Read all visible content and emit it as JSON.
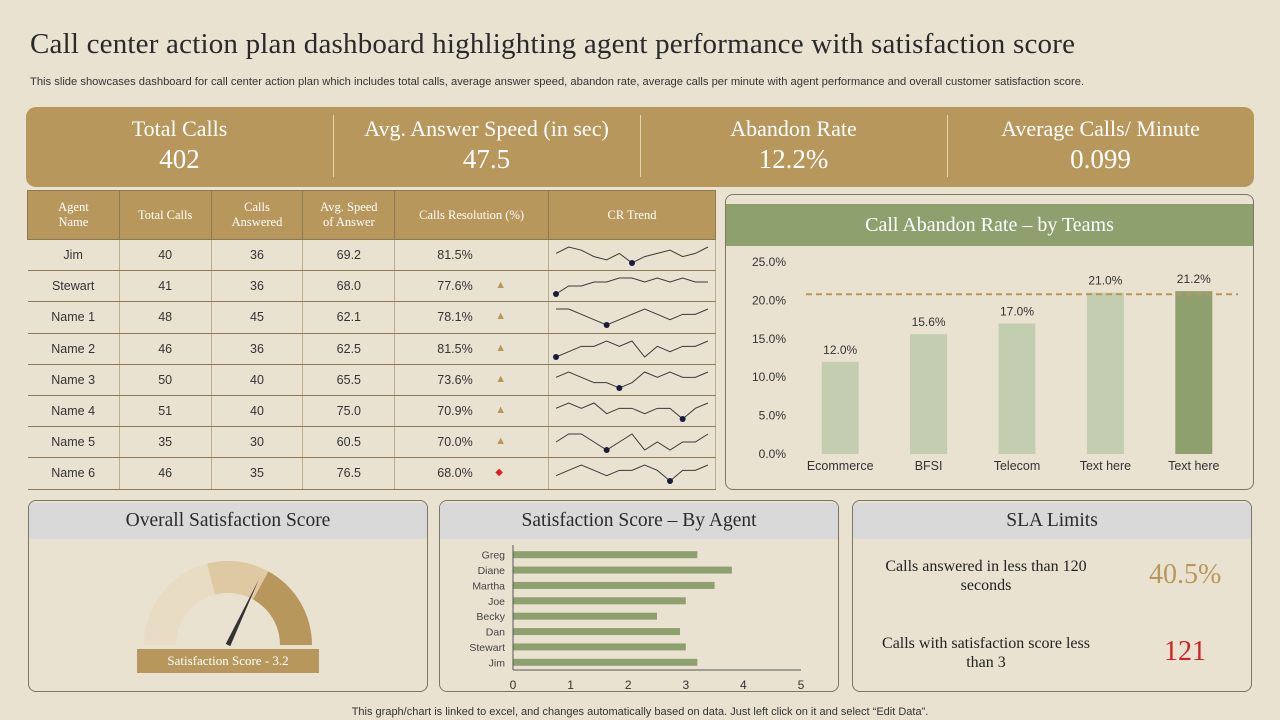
{
  "title": "Call center action plan dashboard highlighting agent performance with satisfaction score",
  "subtitle": "This slide showcases dashboard for call center action plan which includes total calls, average answer speed, abandon rate, average calls per minute with agent performance and overall customer satisfaction score.",
  "kpis": [
    {
      "label": "Total Calls",
      "value": "402"
    },
    {
      "label": "Avg. Answer Speed (in sec)",
      "value": "47.5"
    },
    {
      "label": "Abandon Rate",
      "value": "12.2%"
    },
    {
      "label": "Average Calls/ Minute",
      "value": "0.099"
    }
  ],
  "table": {
    "headers": {
      "agent_1": "Agent",
      "agent_2": "Name",
      "total": "Total Calls",
      "answered_1": "Calls",
      "answered_2": "Answered",
      "speed_1": "Avg. Speed",
      "speed_2": "of Answer",
      "resolution": "Calls Resolution  (%)",
      "trend": "CR Trend"
    },
    "rows": [
      {
        "name": "Jim",
        "total": "40",
        "answered": "36",
        "speed": "69.2",
        "resolution": "81.5%",
        "indicator": "none",
        "trend": [
          3,
          5,
          4,
          2,
          1,
          3,
          0,
          2,
          3,
          4,
          2,
          3,
          5
        ]
      },
      {
        "name": "Stewart",
        "total": "41",
        "answered": "36",
        "speed": "68.0",
        "resolution": "77.6%",
        "indicator": "up",
        "trend": [
          0,
          2,
          2,
          3,
          3,
          4,
          4,
          3,
          4,
          3,
          4,
          3,
          3
        ]
      },
      {
        "name": "Name 1",
        "total": "48",
        "answered": "45",
        "speed": "62.1",
        "resolution": "78.1%",
        "indicator": "up",
        "trend": [
          4,
          4,
          3,
          2,
          1,
          2,
          3,
          4,
          3,
          2,
          3,
          3,
          4
        ]
      },
      {
        "name": "Name 2",
        "total": "46",
        "answered": "36",
        "speed": "62.5",
        "resolution": "81.5%",
        "indicator": "up",
        "trend": [
          1,
          2,
          3,
          3,
          4,
          3,
          4,
          1,
          3,
          2,
          3,
          3,
          4
        ]
      },
      {
        "name": "Name 3",
        "total": "50",
        "answered": "40",
        "speed": "65.5",
        "resolution": "73.6%",
        "indicator": "up",
        "trend": [
          3,
          4,
          3,
          2,
          2,
          1,
          2,
          4,
          3,
          4,
          3,
          3,
          4
        ]
      },
      {
        "name": "Name 4",
        "total": "51",
        "answered": "40",
        "speed": "75.0",
        "resolution": "70.9%",
        "indicator": "up",
        "trend": [
          3,
          4,
          3,
          4,
          2,
          3,
          3,
          2,
          3,
          3,
          1,
          3,
          4
        ]
      },
      {
        "name": "Name 5",
        "total": "35",
        "answered": "30",
        "speed": "60.5",
        "resolution": "70.0%",
        "indicator": "up",
        "trend": [
          3,
          4,
          4,
          3,
          2,
          3,
          4,
          2,
          3,
          2,
          3,
          3,
          4
        ]
      },
      {
        "name": "Name 6",
        "total": "46",
        "answered": "35",
        "speed": "76.5",
        "resolution": "68.0%",
        "indicator": "down",
        "trend": [
          2,
          3,
          4,
          3,
          2,
          3,
          3,
          4,
          3,
          1,
          3,
          3,
          4
        ]
      }
    ]
  },
  "abandon_chart": {
    "header": "Call Abandon Rate – by Teams",
    "chart_data": {
      "type": "bar",
      "title": "Call Abandon Rate – by Teams",
      "categories": [
        "Ecommerce",
        "BFSI",
        "Telecom",
        "Text here",
        "Text here"
      ],
      "values": [
        12.0,
        15.6,
        17.0,
        21.0,
        21.2
      ],
      "value_labels": [
        "12.0%",
        "15.6%",
        "17.0%",
        "21.0%",
        "21.2%"
      ],
      "ylim": [
        0,
        25
      ],
      "yticks": [
        "0.0%",
        "5.0%",
        "10.0%",
        "15.0%",
        "20.0%",
        "25.0%"
      ],
      "target_line": 20.8,
      "bar_color": "#c3cdaf",
      "highlight_color": "#8fa06f"
    }
  },
  "satisfaction": {
    "header": "Overall Satisfaction Score",
    "gauge_label": "Satisfaction Score - 3.2",
    "score": 3.2,
    "max": 5,
    "colors": {
      "light": "#e8dcc4",
      "mid": "#dfc9a2",
      "dark": "#b8975c",
      "needle": "#333333"
    }
  },
  "agent_satisfaction": {
    "header": "Satisfaction Score – By Agent",
    "chart_data": {
      "type": "bar",
      "orientation": "horizontal",
      "categories": [
        "Greg",
        "Diane",
        "Martha",
        "Joe",
        "Becky",
        "Dan",
        "Stewart",
        "Jim"
      ],
      "values": [
        3.2,
        3.8,
        3.5,
        3.0,
        2.5,
        2.9,
        3.0,
        3.2
      ],
      "xlim": [
        0,
        5
      ],
      "xticks": [
        "0",
        "1",
        "2",
        "3",
        "4",
        "5"
      ],
      "bar_color": "#8fa06f"
    }
  },
  "sla": {
    "header": "SLA Limits",
    "item1_label": "Calls answered in less than 120 seconds",
    "item1_value": "40.5%",
    "item2_label": "Calls with satisfaction score less than 3",
    "item2_value": "121",
    "colors": {
      "value1": "#b8975c",
      "value2": "#d42020"
    }
  },
  "footer": "This graph/chart is linked to excel, and changes automatically based on data. Just left click on it and select “Edit Data”."
}
